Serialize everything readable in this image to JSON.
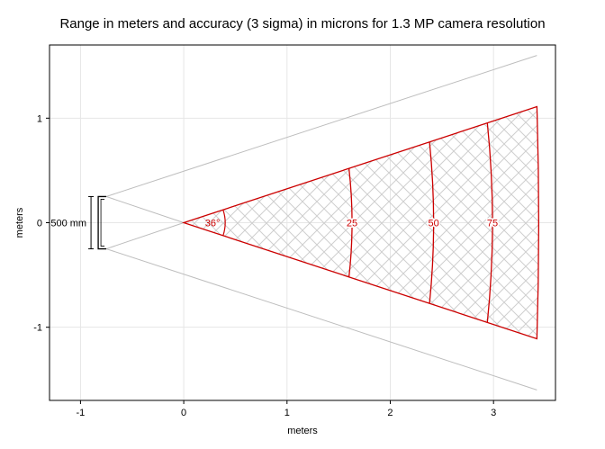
{
  "chart_data": {
    "type": "scatter",
    "title": "Range in meters and accuracy (3 sigma) in microns for 1.3 MP camera resolution",
    "xlabel": "meters",
    "ylabel": "meters",
    "xlim": [
      -1.3,
      3.6
    ],
    "ylim": [
      -1.7,
      1.7
    ],
    "xticks": [
      -1,
      0,
      1,
      2,
      3
    ],
    "yticks": [
      -1,
      0,
      1
    ],
    "tick_labels_x": [
      "-1",
      "0",
      "1",
      "2",
      "3"
    ],
    "tick_labels_y": [
      "-1",
      "0",
      "1"
    ],
    "grid": true,
    "cameras": {
      "x": -0.75,
      "y_top": 0.25,
      "y_bottom": -0.25
    },
    "baseline_label": "500 mm",
    "field_of_view": {
      "apex": [
        0,
        0
      ],
      "angle_label": "36°",
      "outer_lines": [
        {
          "from": [
            -0.75,
            0.25
          ],
          "to": [
            3.42,
            1.6
          ]
        },
        {
          "from": [
            -0.75,
            -0.25
          ],
          "to": [
            3.42,
            -1.6
          ]
        }
      ],
      "inner_lines": [
        {
          "from": [
            -0.75,
            0.25
          ],
          "to": [
            0,
            0
          ]
        },
        {
          "from": [
            -0.75,
            -0.25
          ],
          "to": [
            0,
            0
          ]
        }
      ],
      "range_max": 3.42,
      "range_max_y": 1.11
    },
    "accuracy_contours": [
      {
        "label": "25",
        "x_center": 1.63,
        "x_edge": 1.6
      },
      {
        "label": "50",
        "x_center": 2.42,
        "x_edge": 2.38
      },
      {
        "label": "75",
        "x_center": 2.99,
        "x_edge": 2.94
      }
    ],
    "colors": {
      "region": "#cc0000",
      "fov_lines": "#bdbdbd",
      "hatch": "#cfcfcf",
      "grid": "#e6e6e6",
      "text": "#000000"
    }
  }
}
